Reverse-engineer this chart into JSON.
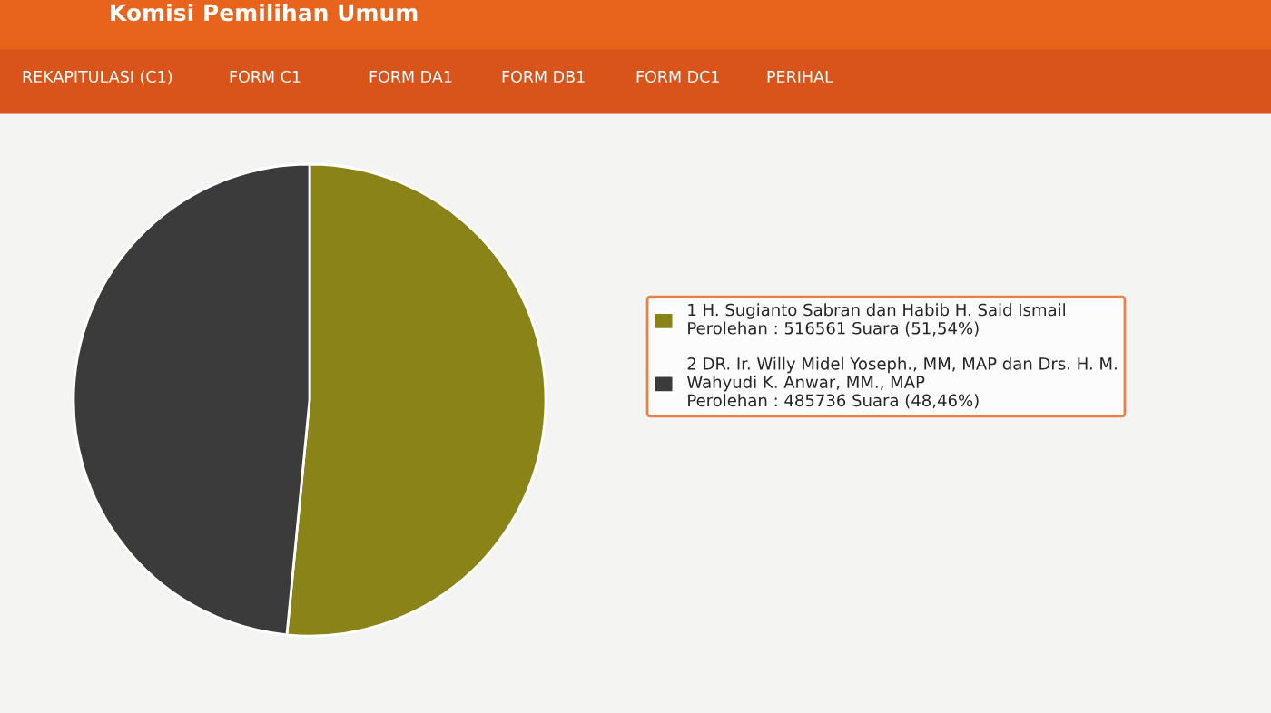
{
  "chart_data": {
    "type": "pie",
    "title": "Komisi Pemilihan Umum",
    "categories": [
      "1 H. Sugianto Sabran dan Habib H. Said Ismail",
      "2 DR. Ir. Willy Midel Yoseph., MM, MAP dan Drs. H. M.\nWahyudi K. Anwar, MM., MAP"
    ],
    "values": [
      516561,
      485736
    ],
    "value_labels": [
      "Perolehan : 516561 Suara (51,54%)",
      "Perolehan : 485736 Suara (48,46%)"
    ],
    "colors": [
      "#8a8418",
      "#3b3b3b"
    ],
    "legend": "right",
    "annotations": [
      "REKAPITULASI (C1)",
      "FORM C1",
      "FORM DA1",
      "FORM DB1",
      "FORM DC1",
      "PERIHAL"
    ]
  }
}
